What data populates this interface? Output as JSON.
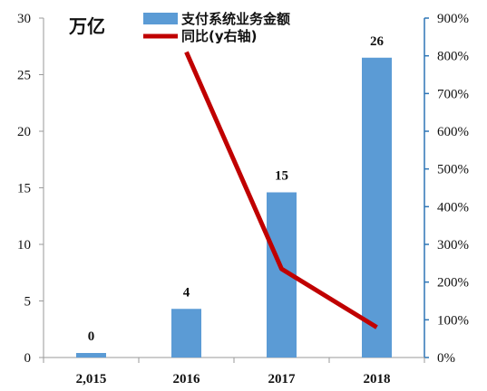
{
  "chart_data": {
    "type": "bar",
    "unit_label": "万亿",
    "categories": [
      "2,015",
      "2016",
      "2017",
      "2018"
    ],
    "series": [
      {
        "name": "支付系统业务金额",
        "type": "bar",
        "axis": "left",
        "color": "#5B9BD5",
        "values": [
          0.4,
          4.3,
          14.6,
          26.5
        ],
        "labels": [
          "0",
          "4",
          "15",
          "26"
        ]
      },
      {
        "name": "同比(y右轴)",
        "type": "line",
        "axis": "right",
        "color": "#C00000",
        "values": [
          null,
          810,
          235,
          80
        ]
      }
    ],
    "y_left": {
      "min": 0,
      "max": 30,
      "ticks": [
        0,
        5,
        10,
        15,
        20,
        25,
        30
      ],
      "tick_labels": [
        "0",
        "5",
        "10",
        "15",
        "20",
        "25",
        "30"
      ]
    },
    "y_right": {
      "min": 0,
      "max": 900,
      "ticks": [
        0,
        100,
        200,
        300,
        400,
        500,
        600,
        700,
        800,
        900
      ],
      "tick_labels": [
        "0%",
        "100%",
        "200%",
        "300%",
        "400%",
        "500%",
        "600%",
        "700%",
        "800%",
        "900%"
      ],
      "color": "#2E75B6"
    },
    "grid": false,
    "legend_position": "top"
  }
}
